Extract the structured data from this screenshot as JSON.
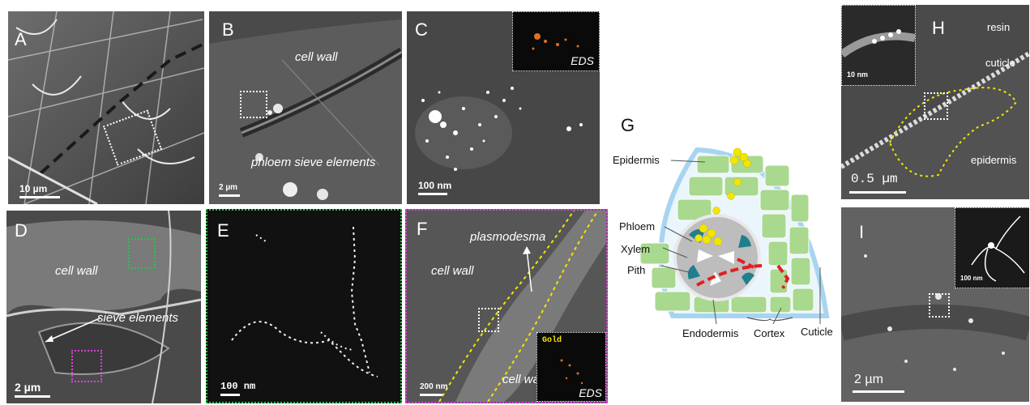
{
  "panels": {
    "a": {
      "label": "A",
      "scale": "10 µm"
    },
    "b": {
      "label": "B",
      "scale": "2 µm",
      "text_cell_wall": "cell wall",
      "text_phloem": "phloem sieve elements"
    },
    "c": {
      "label": "C",
      "scale": "100 nm",
      "inset_label": "EDS"
    },
    "d": {
      "label": "D",
      "scale": "2 µm",
      "text_cell_wall": "cell wall",
      "text_sieve": "sieve elements"
    },
    "e": {
      "label": "E",
      "scale": "100 nm"
    },
    "f": {
      "label": "F",
      "scale": "200 nm",
      "text_plasmodesma": "plasmodesma",
      "text_cell_wall_1": "cell wall",
      "text_cell_wall_2": "cell wall",
      "inset_gold": "Gold",
      "inset_label": "EDS"
    },
    "g": {
      "label": "G",
      "epidermis": "Epidermis",
      "phloem": "Phloem",
      "xylem": "Xylem",
      "pith": "Pith",
      "endodermis": "Endodermis",
      "cortex": "Cortex",
      "cuticle": "Cuticle"
    },
    "h": {
      "label": "H",
      "resin": "resin",
      "cuticle": "cuticle",
      "epidermis": "epidermis",
      "scale": "0.5 µm",
      "inset_scale": "10 nm"
    },
    "i": {
      "label": "I",
      "scale": "2 µm",
      "inset_scale": "100 nm"
    }
  },
  "colors": {
    "dashed_green": "#2fbf4f",
    "dashed_magenta": "#e040e0",
    "outline_yellow": "#f2e600",
    "particles_yellow": "#f2e600",
    "tissue_green": "#a9d88f",
    "vascular_teal": "#1f7f8f",
    "path_red": "#e02020",
    "cuticle_blue": "#9fd0f0"
  }
}
